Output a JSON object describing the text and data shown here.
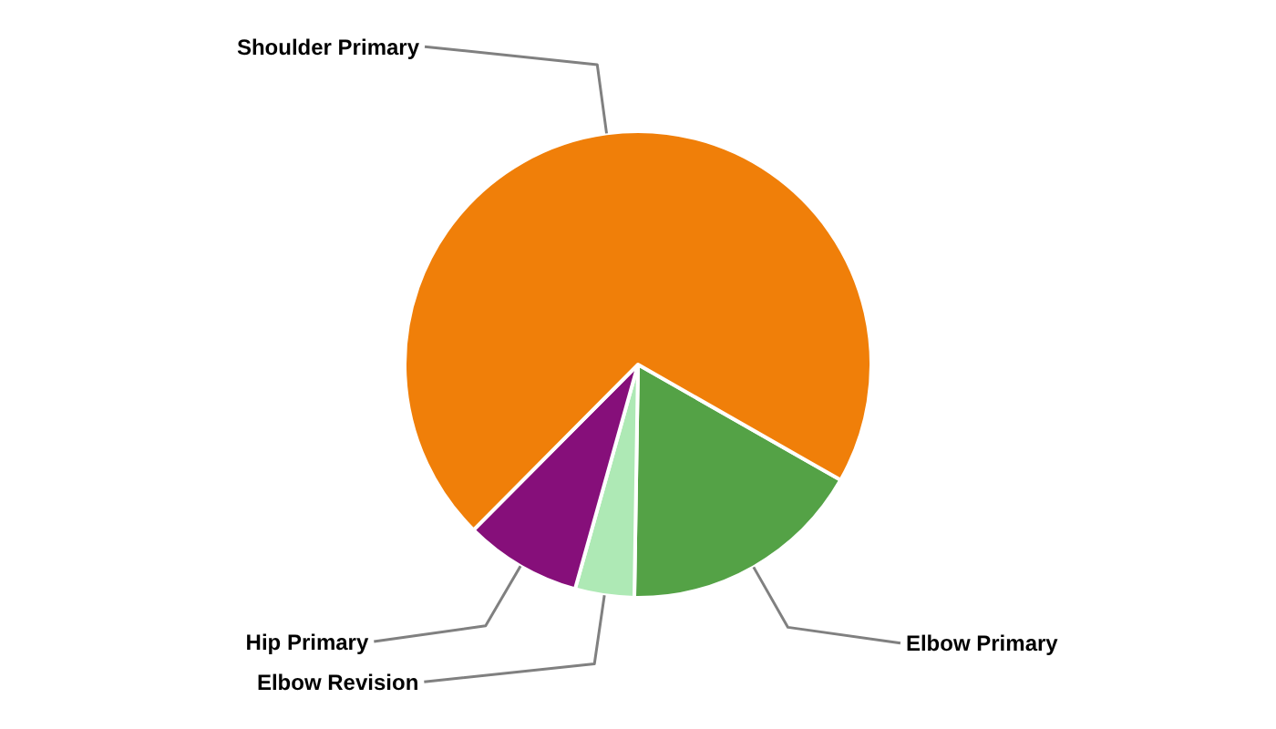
{
  "chart_data": {
    "type": "pie",
    "categories": [
      "Elbow Primary",
      "Elbow Revision",
      "Hip Primary",
      "Shoulder Primary"
    ],
    "values": [
      17.0,
      4.1,
      8.1,
      70.8
    ],
    "colors": [
      "#54a246",
      "#aee9b5",
      "#860f7a",
      "#f07f09"
    ]
  }
}
